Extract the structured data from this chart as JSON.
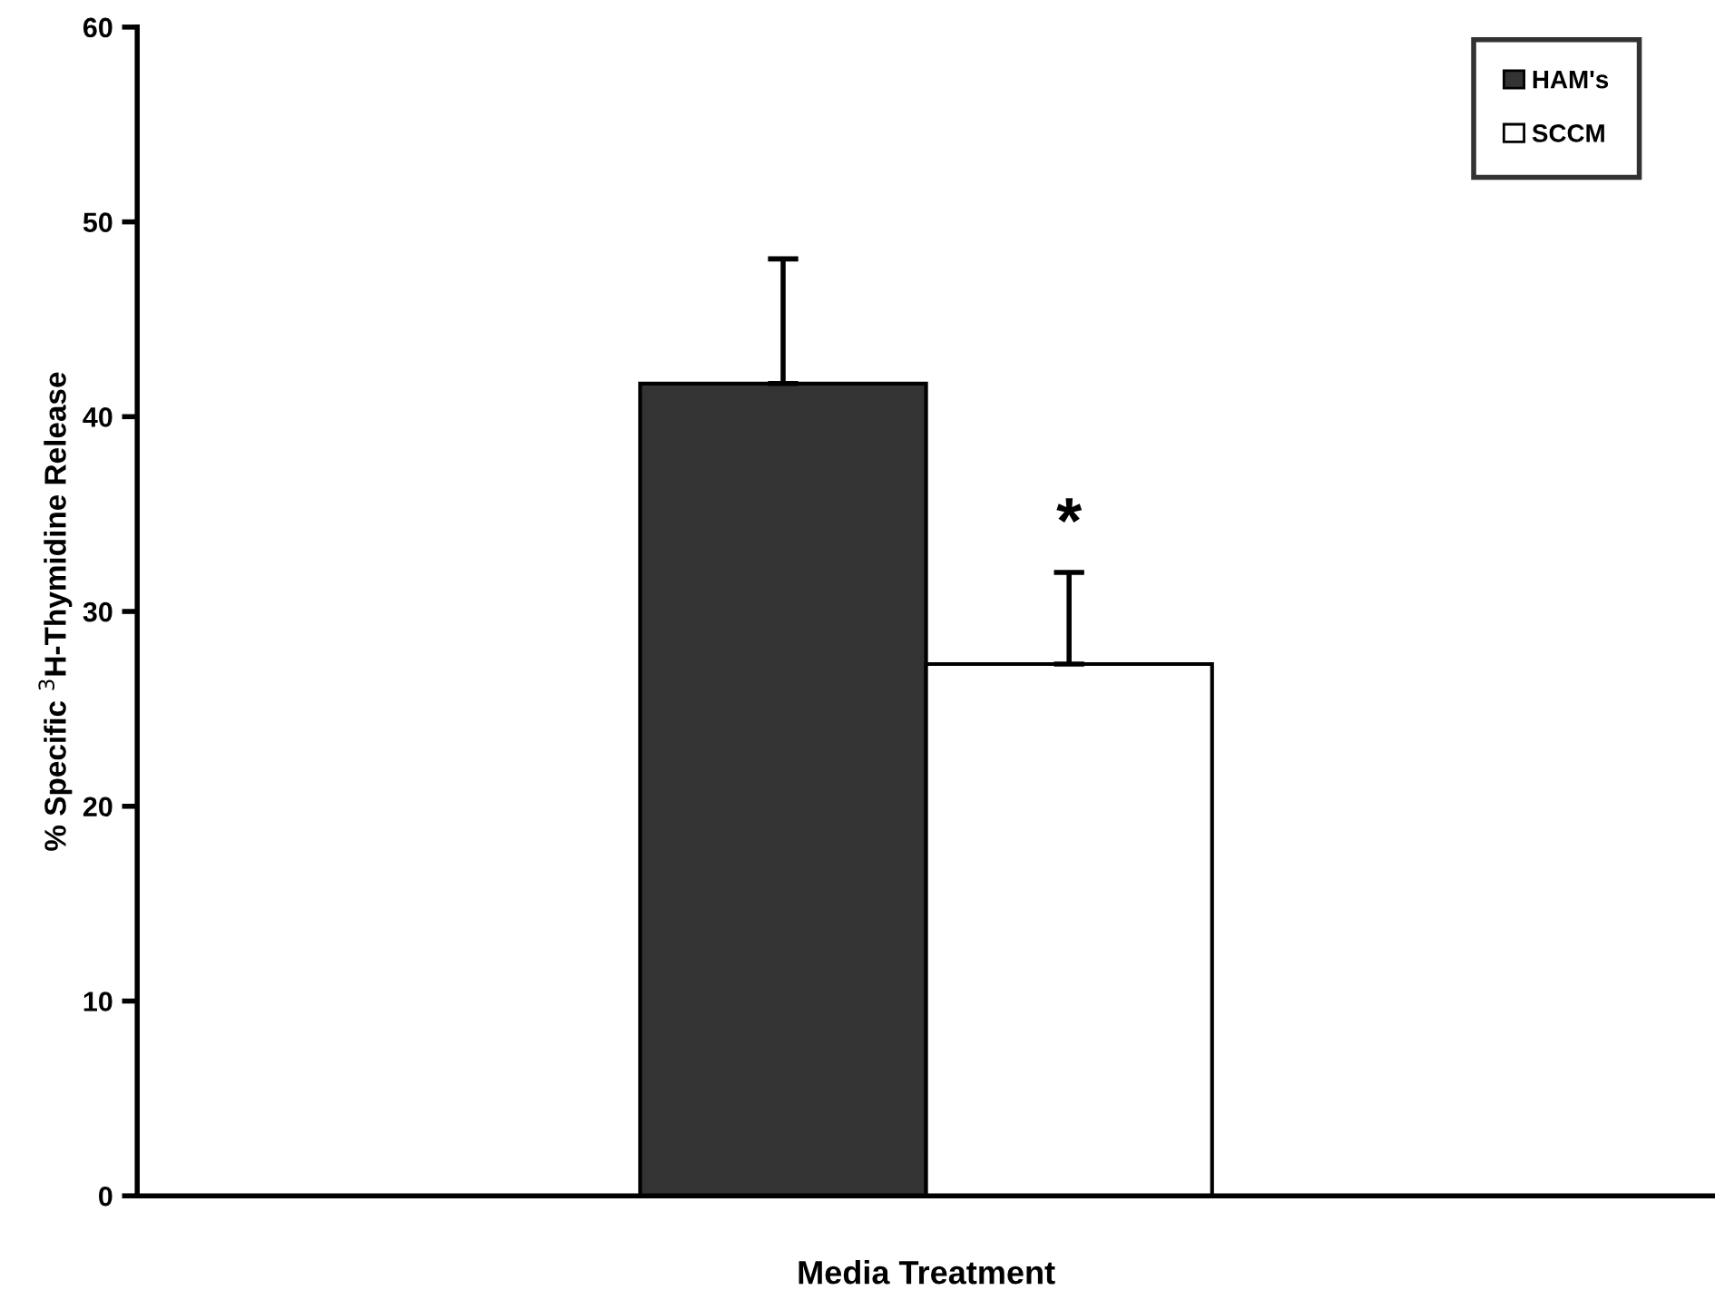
{
  "chart_data": {
    "type": "bar",
    "xlabel": "Media Treatment",
    "ylabel": "% Specific $^{3}$H-Thymidine Release",
    "categories": [
      null
    ],
    "series": [
      {
        "name": "HAM's",
        "color": "#333333",
        "values": [
          41.7
        ],
        "errors": [
          [
            41.7,
            48.1
          ]
        ]
      },
      {
        "name": "SCCM",
        "color": "#ffffff",
        "values": [
          27.3
        ],
        "errors": [
          [
            27.3,
            32.0
          ]
        ]
      }
    ],
    "ylim": [
      0,
      60
    ],
    "yticks": [
      0,
      10,
      20,
      30,
      40,
      50,
      60
    ],
    "grid": false,
    "legend": "top right",
    "annotations": [
      "*"
    ]
  }
}
